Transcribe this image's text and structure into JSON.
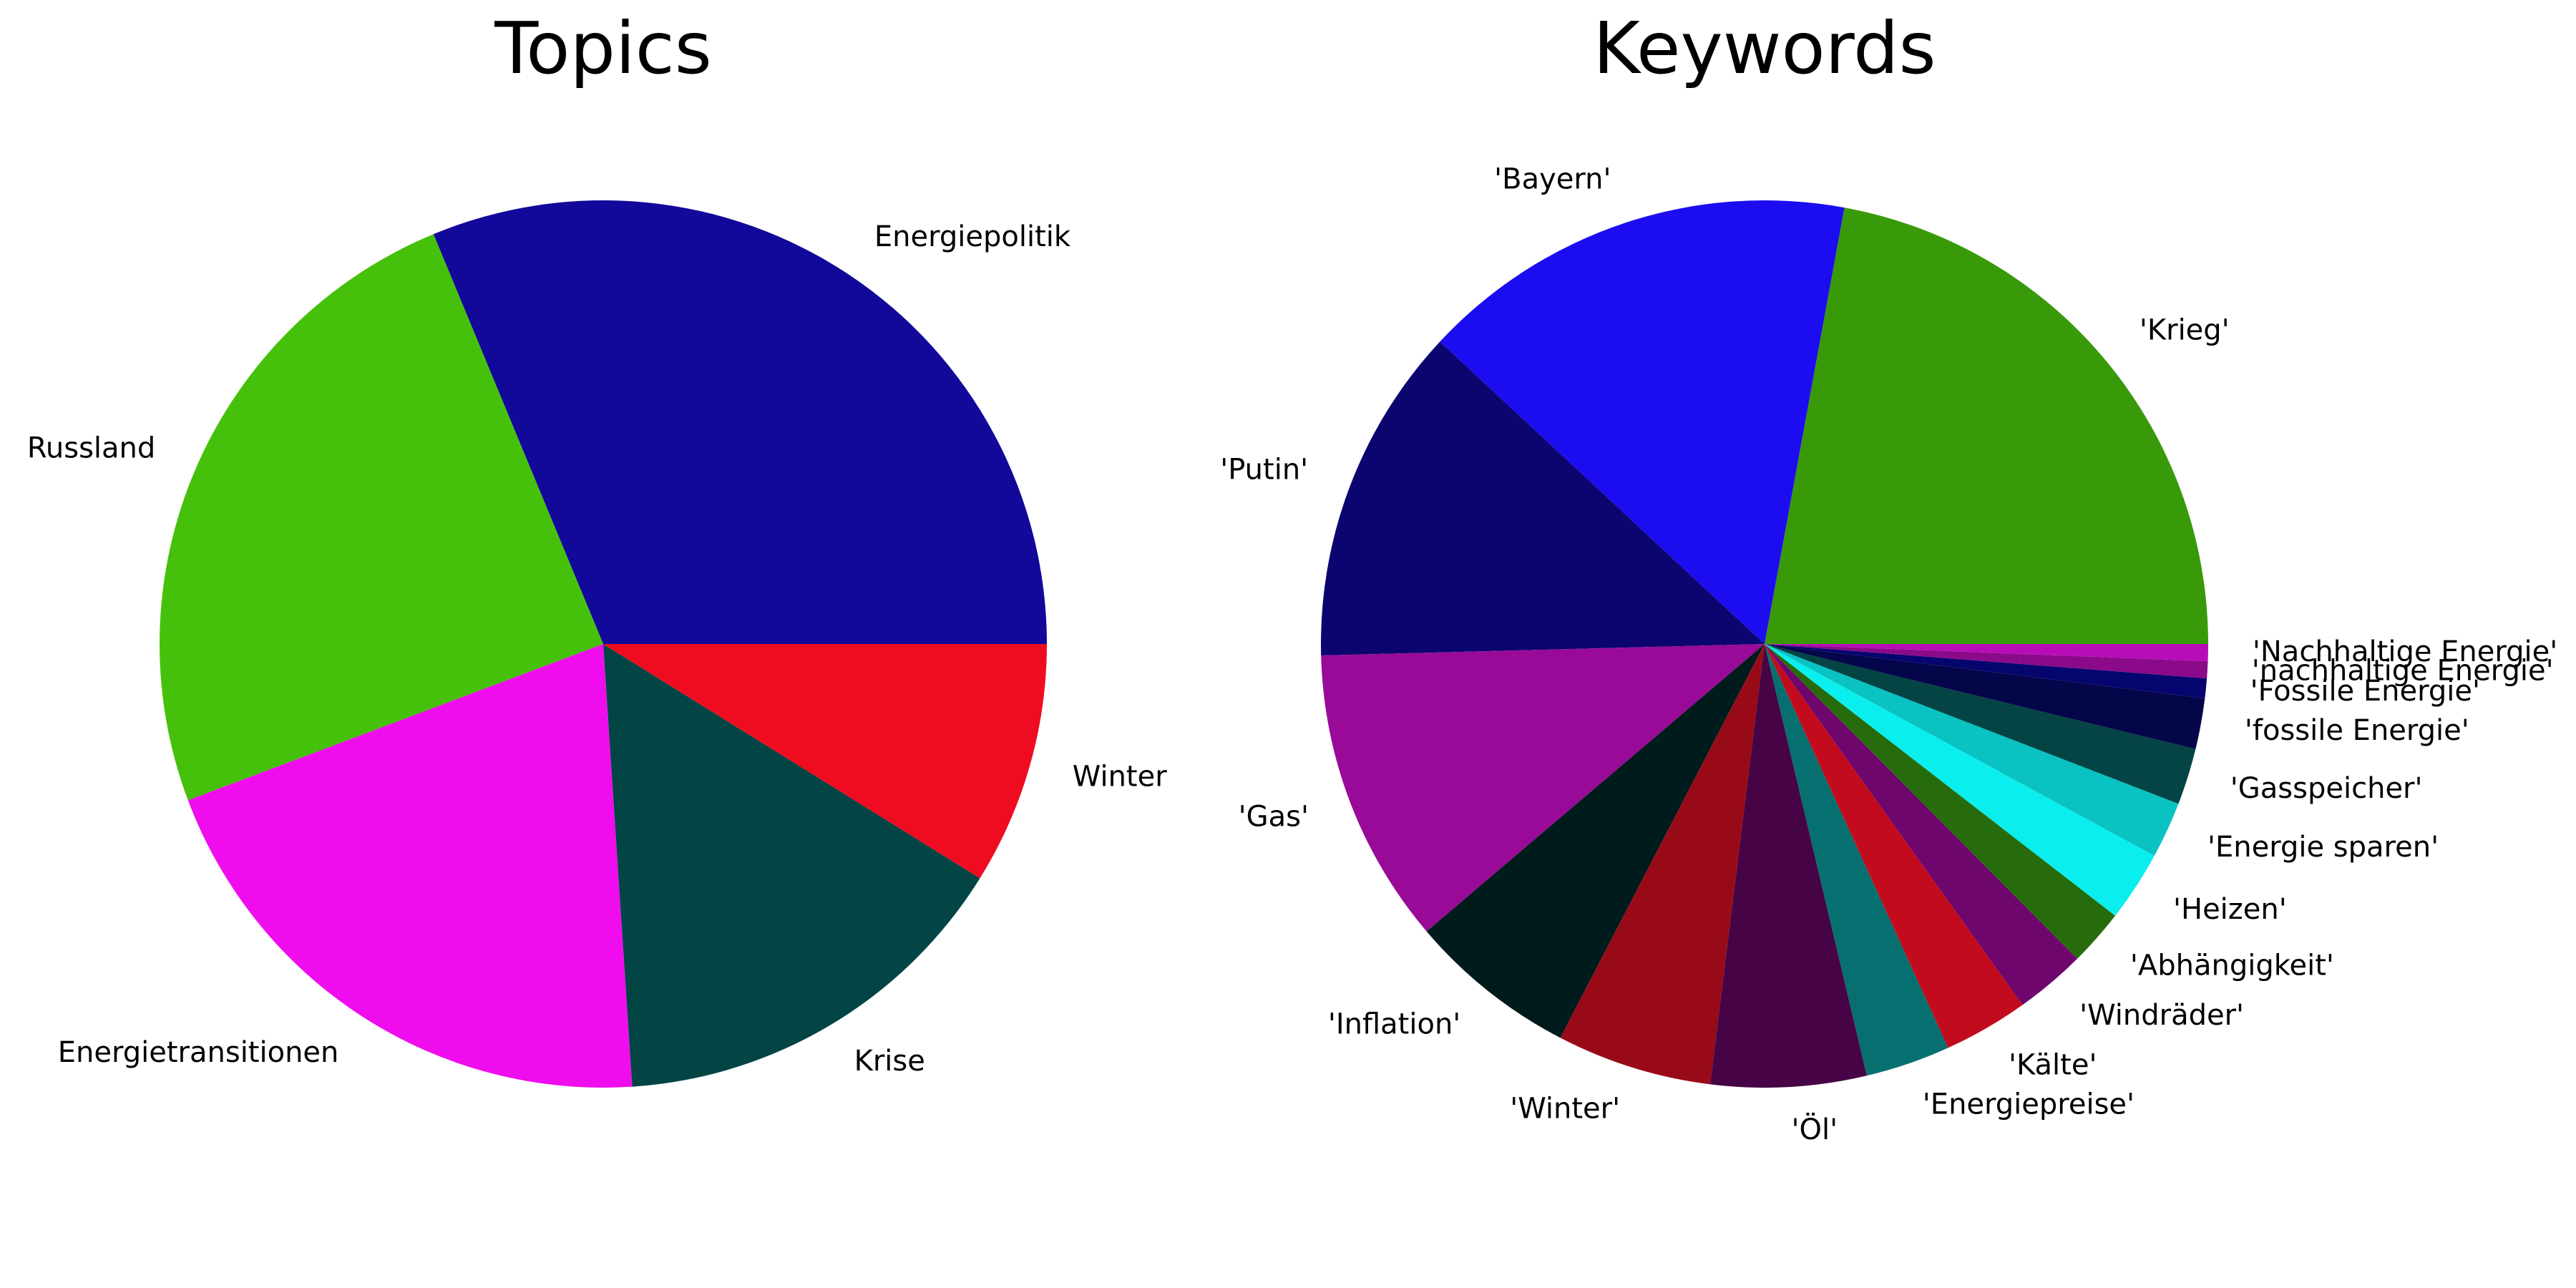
{
  "chart_data": [
    {
      "type": "pie",
      "title": "Topics",
      "start_angle_deg": 0,
      "direction": "counterclockwise",
      "slices": [
        {
          "label": "Energiepolitik",
          "value": 30,
          "color": "#12089a"
        },
        {
          "label": "Russland",
          "value": 23.5,
          "color": "#46c10b"
        },
        {
          "label": "Energietransitionen",
          "value": 19.5,
          "color": "#ef0ded"
        },
        {
          "label": "Krise",
          "value": 14.5,
          "color": "#034444"
        },
        {
          "label": "Winter",
          "value": 8.5,
          "color": "#ef0c20"
        }
      ]
    },
    {
      "type": "pie",
      "title": "Keywords",
      "start_angle_deg": 0,
      "direction": "counterclockwise",
      "slices": [
        {
          "label": "'Krieg'",
          "value": 21.5,
          "color": "#389a09"
        },
        {
          "label": "'Bayern'",
          "value": 15.5,
          "color": "#1c0df0"
        },
        {
          "label": "'Putin'",
          "value": 12.0,
          "color": "#0c0570"
        },
        {
          "label": "'Gas'",
          "value": 10.5,
          "color": "#990a99"
        },
        {
          "label": "'Inflation'",
          "value": 6.0,
          "color": "#001b1b"
        },
        {
          "label": "'Winter'",
          "value": 5.5,
          "color": "#990a18"
        },
        {
          "label": "'Öl'",
          "value": 5.5,
          "color": "#460446"
        },
        {
          "label": "'Energiepreise'",
          "value": 3.0,
          "color": "#067070"
        },
        {
          "label": "'Kälte'",
          "value": 3.0,
          "color": "#c20c1e"
        },
        {
          "label": "'Windräder'",
          "value": 2.5,
          "color": "#6e066e"
        },
        {
          "label": "'Abhängigkeit'",
          "value": 2.0,
          "color": "#266c0c"
        },
        {
          "label": "'Heizen'",
          "value": 2.5,
          "color": "#0aeeee"
        },
        {
          "label": "'Energie sparen'",
          "value": 2.0,
          "color": "#0ac2c2"
        },
        {
          "label": "'Gasspeicher'",
          "value": 2.0,
          "color": "#044444"
        },
        {
          "label": "'fossile Energie'",
          "value": 1.8,
          "color": "#05054a"
        },
        {
          "label": "'Fossile Energie'",
          "value": 0.7,
          "color": "#050570"
        },
        {
          "label": "'nachhaltige Energie'",
          "value": 0.6,
          "color": "#8a0a8a"
        },
        {
          "label": "'Nachhaltige Energie'",
          "value": 0.6,
          "color": "#b80cb8"
        }
      ]
    }
  ]
}
